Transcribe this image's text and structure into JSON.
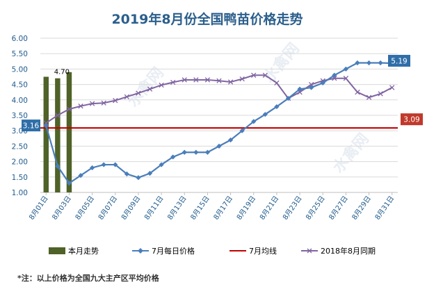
{
  "chart_data": {
    "type": "bar+line",
    "title": "2019年8月份全国鸭苗价格走势",
    "ylim": [
      1.0,
      6.0
    ],
    "yticks": [
      "1.00",
      "1.50",
      "2.00",
      "2.50",
      "3.00",
      "3.50",
      "4.00",
      "4.50",
      "5.00",
      "5.50",
      "6.00"
    ],
    "x_categories": [
      "8月01日",
      "8月02日",
      "8月03日",
      "8月04日",
      "8月05日",
      "8月06日",
      "8月07日",
      "8月08日",
      "8月09日",
      "8月10日",
      "8月11日",
      "8月12日",
      "8月13日",
      "8月14日",
      "8月15日",
      "8月16日",
      "8月17日",
      "8月18日",
      "8月19日",
      "8月20日",
      "8月21日",
      "8月22日",
      "8月23日",
      "8月24日",
      "8月25日",
      "8月26日",
      "8月27日",
      "8月28日",
      "8月29日",
      "8月30日",
      "8月31日"
    ],
    "x_tick_labels": [
      "8月01日",
      "8月03日",
      "8月05日",
      "8月07日",
      "8月09日",
      "8月11日",
      "8月13日",
      "8月15日",
      "8月17日",
      "8月19日",
      "8月21日",
      "8月23日",
      "8月25日",
      "8月27日",
      "8月29日",
      "8月31日"
    ],
    "series": [
      {
        "name": "本月走势",
        "kind": "bar",
        "color": "#4f6228",
        "values": [
          4.75,
          4.7,
          4.9
        ]
      },
      {
        "name": "7月每日价格",
        "kind": "line",
        "color": "#4a7ebb",
        "values": [
          3.16,
          1.85,
          1.3,
          1.55,
          1.8,
          1.9,
          1.9,
          1.6,
          1.48,
          1.62,
          1.9,
          2.15,
          2.3,
          2.3,
          2.3,
          2.5,
          2.7,
          3.0,
          3.3,
          3.53,
          3.78,
          4.05,
          4.35,
          4.4,
          4.55,
          4.8,
          5.0,
          5.2,
          5.2,
          5.2,
          5.19
        ]
      },
      {
        "name": "7月均线",
        "kind": "hline",
        "color": "#c00000",
        "value": 3.09
      },
      {
        "name": "2018年8月同期",
        "kind": "line",
        "color": "#8064a2",
        "values": [
          3.25,
          3.5,
          3.7,
          3.8,
          3.88,
          3.9,
          3.98,
          4.1,
          4.22,
          4.35,
          4.48,
          4.57,
          4.65,
          4.65,
          4.65,
          4.62,
          4.58,
          4.68,
          4.8,
          4.8,
          4.55,
          4.05,
          4.25,
          4.5,
          4.62,
          4.7,
          4.7,
          4.25,
          4.08,
          4.2,
          4.4
        ]
      }
    ],
    "annotations": {
      "bar_label": "4.70",
      "start_callout": "3.16",
      "end_callout": "5.19",
      "avg_callout": "3.09"
    },
    "legend_position": "bottom",
    "grid": "horizontal"
  },
  "footnote": "*注：以上价格为全国九大主产区平均价格",
  "watermark": "水禽网",
  "colors": {
    "axis_text": "#1f5a8c",
    "callout_blue": "#2f6ea8",
    "callout_red": "#c0392b"
  }
}
